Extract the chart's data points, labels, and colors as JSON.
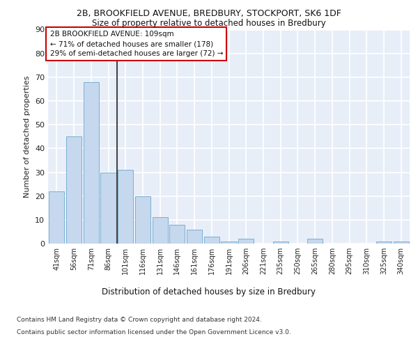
{
  "title1": "2B, BROOKFIELD AVENUE, BREDBURY, STOCKPORT, SK6 1DF",
  "title2": "Size of property relative to detached houses in Bredbury",
  "xlabel": "Distribution of detached houses by size in Bredbury",
  "ylabel": "Number of detached properties",
  "bar_color": "#c5d8ed",
  "bar_edge_color": "#7aafd4",
  "background_color": "#e8eef8",
  "grid_color": "#ffffff",
  "fig_facecolor": "#ffffff",
  "categories": [
    "41sqm",
    "56sqm",
    "71sqm",
    "86sqm",
    "101sqm",
    "116sqm",
    "131sqm",
    "146sqm",
    "161sqm",
    "176sqm",
    "191sqm",
    "206sqm",
    "221sqm",
    "235sqm",
    "250sqm",
    "265sqm",
    "280sqm",
    "295sqm",
    "310sqm",
    "325sqm",
    "340sqm"
  ],
  "values": [
    22,
    45,
    68,
    30,
    31,
    20,
    11,
    8,
    6,
    3,
    1,
    2,
    0,
    1,
    0,
    2,
    0,
    0,
    0,
    1,
    1
  ],
  "annotation_line1": "2B BROOKFIELD AVENUE: 109sqm",
  "annotation_line2": "← 71% of detached houses are smaller (178)",
  "annotation_line3": "29% of semi-detached houses are larger (72) →",
  "vline_color": "#444444",
  "annotation_box_color": "#ffffff",
  "annotation_box_edge": "#cc0000",
  "ylim": [
    0,
    90
  ],
  "yticks": [
    0,
    10,
    20,
    30,
    40,
    50,
    60,
    70,
    80,
    90
  ],
  "footer1": "Contains HM Land Registry data © Crown copyright and database right 2024.",
  "footer2": "Contains public sector information licensed under the Open Government Licence v3.0."
}
